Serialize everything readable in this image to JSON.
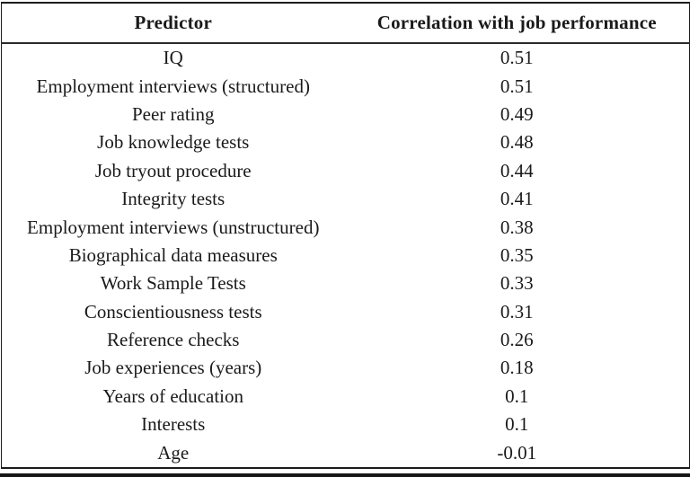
{
  "page": {
    "background": "#ffffff"
  },
  "colors": {
    "text": "#1a1a1a",
    "border": "#1b1b1b",
    "header_separator": "#2a2a2a",
    "bottom_bar": "#161616"
  },
  "table": {
    "columns": [
      "Predictor",
      "Correlation with job performance"
    ],
    "rows": [
      {
        "predictor": "IQ",
        "correlation": "0.51"
      },
      {
        "predictor": "Employment interviews (structured)",
        "correlation": "0.51"
      },
      {
        "predictor": "Peer rating",
        "correlation": "0.49"
      },
      {
        "predictor": "Job knowledge tests",
        "correlation": "0.48"
      },
      {
        "predictor": "Job tryout procedure",
        "correlation": "0.44"
      },
      {
        "predictor": "Integrity tests",
        "correlation": "0.41"
      },
      {
        "predictor": "Employment interviews (unstructured)",
        "correlation": "0.38"
      },
      {
        "predictor": "Biographical data measures",
        "correlation": "0.35"
      },
      {
        "predictor": "Work Sample Tests",
        "correlation": "0.33"
      },
      {
        "predictor": "Conscientiousness tests",
        "correlation": "0.31"
      },
      {
        "predictor": "Reference checks",
        "correlation": "0.26"
      },
      {
        "predictor": "Job experiences (years)",
        "correlation": "0.18"
      },
      {
        "predictor": "Years of education",
        "correlation": "0.1"
      },
      {
        "predictor": "Interests",
        "correlation": "0.1"
      },
      {
        "predictor": "Age",
        "correlation": "-0.01"
      }
    ]
  },
  "chart_data": {
    "type": "table",
    "columns": [
      "Predictor",
      "Correlation with job performance"
    ],
    "rows": [
      [
        "IQ",
        0.51
      ],
      [
        "Employment interviews (structured)",
        0.51
      ],
      [
        "Peer rating",
        0.49
      ],
      [
        "Job knowledge tests",
        0.48
      ],
      [
        "Job tryout procedure",
        0.44
      ],
      [
        "Integrity tests",
        0.41
      ],
      [
        "Employment interviews (unstructured)",
        0.38
      ],
      [
        "Biographical data measures",
        0.35
      ],
      [
        "Work Sample Tests",
        0.33
      ],
      [
        "Conscientiousness tests",
        0.31
      ],
      [
        "Reference checks",
        0.26
      ],
      [
        "Job experiences (years)",
        0.18
      ],
      [
        "Years of education",
        0.1
      ],
      [
        "Interests",
        0.1
      ],
      [
        "Age",
        -0.01
      ]
    ]
  }
}
